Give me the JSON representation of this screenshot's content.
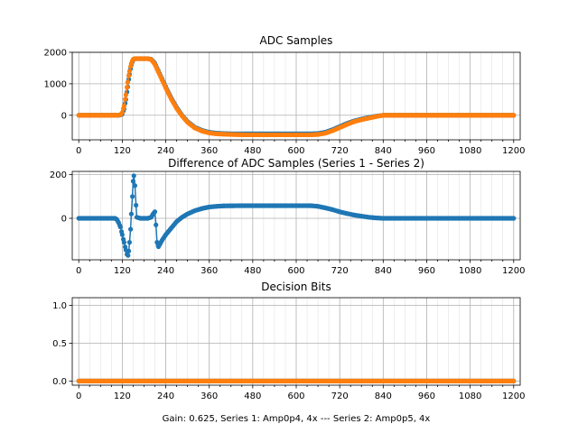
{
  "chart_data": [
    {
      "type": "line",
      "title": "ADC Samples",
      "xlabel": "",
      "ylabel": "",
      "xlim": [
        -18,
        1218
      ],
      "ylim": [
        -780,
        2000
      ],
      "xticks": [
        0,
        120,
        240,
        360,
        480,
        600,
        720,
        840,
        960,
        1080,
        1200
      ],
      "xticklabels": [
        "0",
        "120",
        "240",
        "360",
        "480",
        "600",
        "720",
        "840",
        "960",
        "1080",
        "1200"
      ],
      "yticks": [
        0,
        1000,
        2000
      ],
      "yticklabels": [
        "0",
        "1000",
        "2000"
      ],
      "grid": true,
      "series": [
        {
          "name": "Series 1 (Amp0p4, 4x)",
          "color": "#1f77b4",
          "marker": "dot",
          "x": [
            0,
            100,
            110,
            115,
            120,
            125,
            130,
            135,
            140,
            145,
            150,
            155,
            160,
            170,
            180,
            190,
            200,
            210,
            220,
            230,
            240,
            255,
            270,
            285,
            300,
            320,
            340,
            360,
            380,
            400,
            420,
            460,
            500,
            550,
            600,
            640,
            660,
            680,
            700,
            720,
            740,
            760,
            780,
            800,
            820,
            840,
            900,
            1000,
            1100,
            1200
          ],
          "y": [
            0,
            0,
            0,
            10,
            40,
            200,
            500,
            900,
            1300,
            1600,
            1760,
            1800,
            1800,
            1800,
            1800,
            1800,
            1780,
            1650,
            1400,
            1150,
            900,
            550,
            250,
            0,
            -200,
            -380,
            -480,
            -540,
            -570,
            -580,
            -590,
            -590,
            -590,
            -590,
            -590,
            -590,
            -580,
            -540,
            -460,
            -360,
            -260,
            -180,
            -120,
            -70,
            -30,
            0,
            0,
            0,
            0,
            0
          ]
        },
        {
          "name": "Series 2 (Amp0p5, 4x)",
          "color": "#ff7f0e",
          "marker": "dot",
          "x": [
            0,
            100,
            110,
            115,
            120,
            125,
            130,
            135,
            140,
            145,
            150,
            155,
            160,
            170,
            180,
            190,
            200,
            210,
            220,
            230,
            240,
            255,
            270,
            285,
            300,
            320,
            340,
            360,
            380,
            400,
            420,
            460,
            500,
            550,
            600,
            640,
            660,
            680,
            700,
            720,
            740,
            760,
            780,
            800,
            820,
            840,
            900,
            1000,
            1100,
            1200
          ],
          "y": [
            0,
            0,
            5,
            20,
            80,
            300,
            650,
            1050,
            1400,
            1650,
            1780,
            1800,
            1800,
            1800,
            1800,
            1800,
            1770,
            1620,
            1370,
            1120,
            870,
            520,
            220,
            -20,
            -220,
            -400,
            -500,
            -560,
            -590,
            -600,
            -610,
            -620,
            -620,
            -620,
            -620,
            -620,
            -610,
            -570,
            -490,
            -390,
            -290,
            -200,
            -140,
            -90,
            -40,
            0,
            0,
            0,
            0,
            0
          ]
        }
      ]
    },
    {
      "type": "line",
      "title": "Difference of ADC Samples (Series 1 - Series 2)",
      "xlabel": "",
      "ylabel": "",
      "xlim": [
        -18,
        1218
      ],
      "ylim": [
        -190,
        215
      ],
      "xticks": [
        0,
        120,
        240,
        360,
        480,
        600,
        720,
        840,
        960,
        1080,
        1200
      ],
      "xticklabels": [
        "0",
        "120",
        "240",
        "360",
        "480",
        "600",
        "720",
        "840",
        "960",
        "1080",
        "1200"
      ],
      "yticks": [
        0,
        200
      ],
      "yticklabels": [
        "0",
        "200"
      ],
      "grid": true,
      "series": [
        {
          "name": "Difference",
          "color": "#1f77b4",
          "marker": "dot",
          "x": [
            0,
            100,
            105,
            110,
            115,
            120,
            125,
            130,
            133,
            136,
            138,
            140,
            143,
            145,
            148,
            150,
            152,
            155,
            158,
            160,
            170,
            180,
            190,
            200,
            205,
            210,
            213,
            216,
            220,
            225,
            230,
            240,
            255,
            270,
            285,
            300,
            320,
            340,
            360,
            380,
            400,
            450,
            500,
            550,
            600,
            640,
            660,
            680,
            700,
            720,
            740,
            760,
            780,
            800,
            820,
            840,
            900,
            1000,
            1100,
            1200
          ],
          "y": [
            0,
            0,
            -5,
            -20,
            -40,
            -75,
            -110,
            -145,
            -165,
            -170,
            -150,
            -110,
            -50,
            20,
            100,
            170,
            195,
            150,
            60,
            5,
            0,
            0,
            0,
            5,
            20,
            30,
            -30,
            -110,
            -130,
            -115,
            -100,
            -75,
            -45,
            -15,
            5,
            20,
            35,
            45,
            52,
            55,
            57,
            58,
            58,
            58,
            58,
            58,
            55,
            48,
            40,
            30,
            22,
            15,
            10,
            5,
            2,
            0,
            0,
            0,
            0,
            0
          ]
        }
      ]
    },
    {
      "type": "line",
      "title": "Decision Bits",
      "xlabel": "Gain: 0.625, Series 1: Amp0p4, 4x --- Series 2: Amp0p5, 4x",
      "ylabel": "",
      "xlim": [
        -18,
        1218
      ],
      "ylim": [
        -0.055,
        1.1
      ],
      "xticks": [
        0,
        120,
        240,
        360,
        480,
        600,
        720,
        840,
        960,
        1080,
        1200
      ],
      "xticklabels": [
        "0",
        "120",
        "240",
        "360",
        "480",
        "600",
        "720",
        "840",
        "960",
        "1080",
        "1200"
      ],
      "yticks": [
        0.0,
        0.5,
        1.0
      ],
      "yticklabels": [
        "0.0",
        "0.5",
        "1.0"
      ],
      "grid": true,
      "series": [
        {
          "name": "Series 1 (Amp0p4, 4x)",
          "color": "#1f77b4",
          "marker": "dot",
          "x": [
            0,
            1200
          ],
          "y": [
            0,
            0
          ]
        },
        {
          "name": "Series 2 (Amp0p5, 4x)",
          "color": "#ff7f0e",
          "marker": "dot",
          "x": [
            0,
            1200
          ],
          "y": [
            0,
            0
          ]
        }
      ]
    }
  ]
}
